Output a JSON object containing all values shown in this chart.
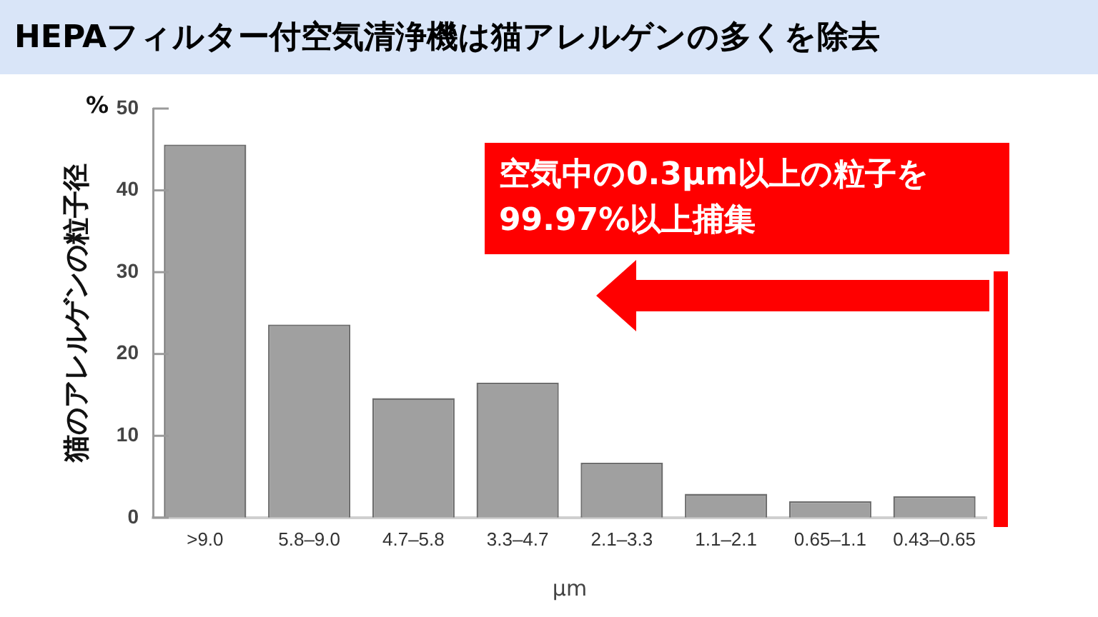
{
  "chart_data": {
    "type": "bar",
    "title": "HEPAフィルター付空気清浄機は猫アレルゲンの多くを除去",
    "ylabel": "猫のアレルゲンの粒子径",
    "xlabel": "μm",
    "categories": [
      ">9.0",
      "5.8–9.0",
      "4.7–5.8",
      "3.3–4.7",
      "2.1–3.3",
      "1.1–2.1",
      "0.65–1.1",
      "0.43–0.65"
    ],
    "values": [
      45.6,
      23.6,
      14.6,
      16.5,
      6.7,
      2.9,
      2.0,
      2.6
    ],
    "color": "#a0a0a0",
    "ylim": [
      0,
      50
    ],
    "yticks": [
      0,
      10,
      20,
      30,
      40,
      50
    ],
    "annotations": [
      "%",
      "空気中の0.3μm以上の粒子を\n99.97%以上捕集"
    ]
  }
}
